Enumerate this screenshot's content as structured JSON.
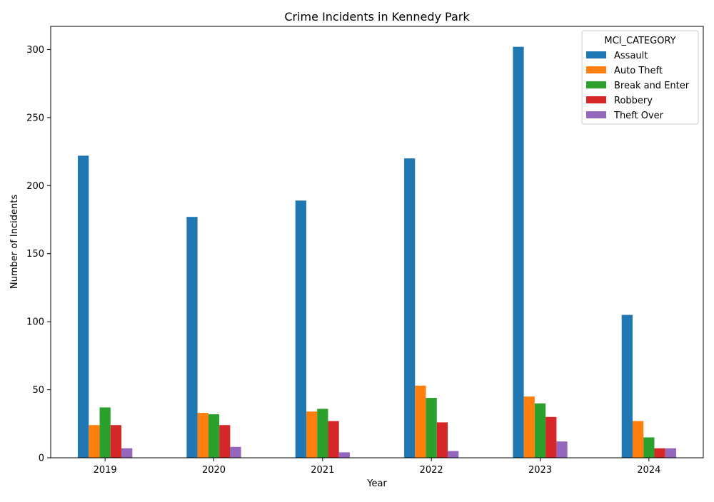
{
  "chart_data": {
    "type": "bar",
    "title": "Crime Incidents in Kennedy Park",
    "xlabel": "Year",
    "ylabel": "Number of Incidents",
    "categories": [
      "2019",
      "2020",
      "2021",
      "2022",
      "2023",
      "2024"
    ],
    "ylim": [
      0,
      317
    ],
    "yticks": [
      0,
      50,
      100,
      150,
      200,
      250,
      300
    ],
    "grid": false,
    "legend": {
      "title": "MCI_CATEGORY",
      "placement": "top-right"
    },
    "series": [
      {
        "name": "Assault",
        "color": "#1f77b4",
        "values": [
          222,
          177,
          189,
          220,
          302,
          105
        ]
      },
      {
        "name": "Auto Theft",
        "color": "#ff7f0e",
        "values": [
          24,
          33,
          34,
          53,
          45,
          27
        ]
      },
      {
        "name": "Break and Enter",
        "color": "#2ca02c",
        "values": [
          37,
          32,
          36,
          44,
          40,
          15
        ]
      },
      {
        "name": "Robbery",
        "color": "#d62728",
        "values": [
          24,
          24,
          27,
          26,
          30,
          7
        ]
      },
      {
        "name": "Theft Over",
        "color": "#9467bd",
        "values": [
          7,
          8,
          4,
          5,
          12,
          7
        ]
      }
    ]
  }
}
